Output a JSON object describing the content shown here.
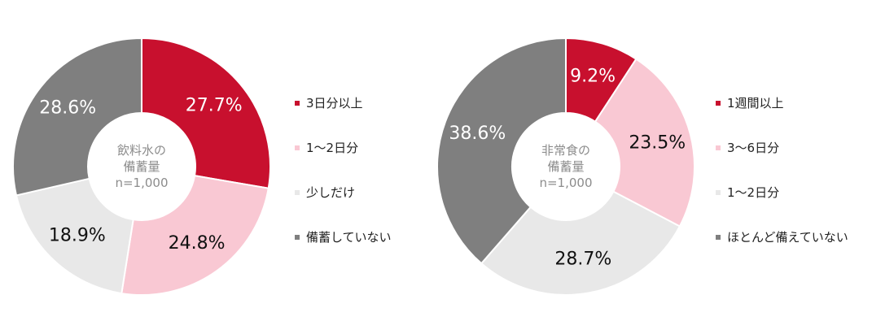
{
  "chart_data": [
    {
      "type": "donut",
      "center_label": [
        "飲料水の",
        "備蓄量",
        "n=1,000"
      ],
      "categories": [
        "3日分以上",
        "1～2日分",
        "少しだけ",
        "備蓄していない"
      ],
      "values": [
        27.7,
        24.8,
        18.9,
        28.6
      ],
      "value_labels": [
        "27.7%",
        "24.8%",
        "18.9%",
        "28.6%"
      ],
      "colors": [
        "#c8102e",
        "#f9c8d3",
        "#e8e8e8",
        "#7f7f7f"
      ],
      "label_colors": [
        "#ffffff",
        "#111111",
        "#111111",
        "#ffffff"
      ],
      "legend_placement": "right"
    },
    {
      "type": "donut",
      "center_label": [
        "非常食の",
        "備蓄量",
        "n=1,000"
      ],
      "categories": [
        "1週間以上",
        "3～6日分",
        "1～2日分",
        "ほとんど備えていない"
      ],
      "values": [
        9.2,
        23.5,
        28.7,
        38.6
      ],
      "value_labels": [
        "9.2%",
        "23.5%",
        "28.7%",
        "38.6%"
      ],
      "colors": [
        "#c8102e",
        "#f9c8d3",
        "#e8e8e8",
        "#7f7f7f"
      ],
      "label_colors": [
        "#ffffff",
        "#111111",
        "#111111",
        "#ffffff"
      ],
      "legend_placement": "right"
    }
  ]
}
